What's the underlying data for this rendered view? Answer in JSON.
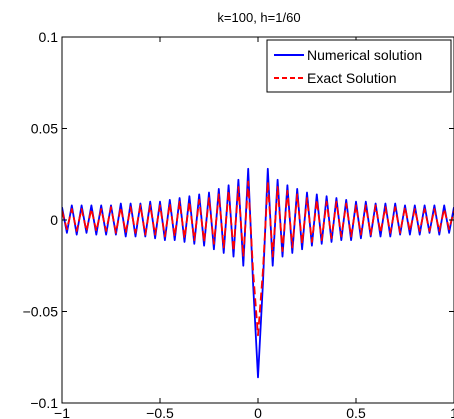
{
  "chart_data": {
    "type": "line",
    "title": "k=100, h=1/60",
    "xlabel": "",
    "ylabel": "",
    "xlim": [
      -1,
      1
    ],
    "ylim": [
      -0.1,
      0.1
    ],
    "xticks": [
      -1,
      -0.5,
      0,
      0.5,
      1
    ],
    "yticks": [
      -0.1,
      -0.05,
      0,
      0.05,
      0.1
    ],
    "xtick_labels": [
      "−1",
      "−0.5",
      "0",
      "0.5",
      "1"
    ],
    "ytick_labels": [
      "−0.1",
      "−0.05",
      "0",
      "0.05",
      "0.1"
    ],
    "grid": false,
    "legend_position": "top-right",
    "series": [
      {
        "name": "Numerical solution",
        "color": "#0000ff",
        "dash": "solid",
        "x": [
          -1,
          -0.975,
          -0.95,
          -0.925,
          -0.9,
          -0.875,
          -0.85,
          -0.825,
          -0.8,
          -0.775,
          -0.75,
          -0.725,
          -0.7,
          -0.675,
          -0.65,
          -0.625,
          -0.6,
          -0.575,
          -0.55,
          -0.525,
          -0.5,
          -0.475,
          -0.45,
          -0.425,
          -0.4,
          -0.375,
          -0.35,
          -0.325,
          -0.3,
          -0.275,
          -0.25,
          -0.225,
          -0.2,
          -0.175,
          -0.15,
          -0.125,
          -0.1,
          -0.075,
          -0.05,
          -0.025,
          0,
          0.025,
          0.05,
          0.075,
          0.1,
          0.125,
          0.15,
          0.175,
          0.2,
          0.225,
          0.25,
          0.275,
          0.3,
          0.325,
          0.35,
          0.375,
          0.4,
          0.425,
          0.45,
          0.475,
          0.5,
          0.525,
          0.55,
          0.575,
          0.6,
          0.625,
          0.65,
          0.675,
          0.7,
          0.725,
          0.75,
          0.775,
          0.8,
          0.825,
          0.85,
          0.875,
          0.9,
          0.925,
          0.95,
          0.975,
          1
        ],
        "y": [
          0.007,
          -0.007,
          0.008,
          -0.008,
          0.008,
          -0.007,
          0.008,
          -0.008,
          0.008,
          -0.008,
          0.008,
          -0.008,
          0.009,
          -0.009,
          0.009,
          -0.009,
          0.009,
          -0.009,
          0.01,
          -0.01,
          0.01,
          -0.011,
          0.011,
          -0.011,
          0.012,
          -0.012,
          0.013,
          -0.013,
          0.014,
          -0.014,
          0.015,
          -0.016,
          0.017,
          -0.018,
          0.019,
          -0.02,
          0.022,
          -0.025,
          0.028,
          -0.035,
          -0.086,
          -0.035,
          0.028,
          -0.025,
          0.022,
          -0.02,
          0.019,
          -0.018,
          0.017,
          -0.016,
          0.015,
          -0.014,
          0.014,
          -0.013,
          0.013,
          -0.012,
          0.012,
          -0.011,
          0.011,
          -0.011,
          0.01,
          -0.01,
          0.01,
          -0.009,
          0.009,
          -0.009,
          0.009,
          -0.009,
          0.009,
          -0.008,
          0.008,
          -0.008,
          0.008,
          -0.008,
          0.008,
          -0.007,
          0.008,
          -0.008,
          0.008,
          -0.007,
          0.007
        ]
      },
      {
        "name": "Exact Solution",
        "color": "#ff0000",
        "dash": "dashed",
        "x": [
          -1,
          -0.975,
          -0.95,
          -0.925,
          -0.9,
          -0.875,
          -0.85,
          -0.825,
          -0.8,
          -0.775,
          -0.75,
          -0.725,
          -0.7,
          -0.675,
          -0.65,
          -0.625,
          -0.6,
          -0.575,
          -0.55,
          -0.525,
          -0.5,
          -0.475,
          -0.45,
          -0.425,
          -0.4,
          -0.375,
          -0.35,
          -0.325,
          -0.3,
          -0.275,
          -0.25,
          -0.225,
          -0.2,
          -0.175,
          -0.15,
          -0.125,
          -0.1,
          -0.075,
          -0.05,
          -0.025,
          0,
          0.025,
          0.05,
          0.075,
          0.1,
          0.125,
          0.15,
          0.175,
          0.2,
          0.225,
          0.25,
          0.275,
          0.3,
          0.325,
          0.35,
          0.375,
          0.4,
          0.425,
          0.45,
          0.475,
          0.5,
          0.525,
          0.55,
          0.575,
          0.6,
          0.625,
          0.65,
          0.675,
          0.7,
          0.725,
          0.75,
          0.775,
          0.8,
          0.825,
          0.85,
          0.875,
          0.9,
          0.925,
          0.95,
          0.975,
          1
        ],
        "y": [
          0.005,
          -0.005,
          0.006,
          -0.006,
          0.006,
          -0.006,
          0.006,
          -0.006,
          0.006,
          -0.006,
          0.007,
          -0.007,
          0.007,
          -0.007,
          0.007,
          -0.007,
          0.008,
          -0.008,
          0.008,
          -0.008,
          0.008,
          -0.009,
          0.009,
          -0.009,
          0.01,
          -0.01,
          0.01,
          -0.011,
          0.011,
          -0.012,
          0.012,
          -0.013,
          0.014,
          -0.015,
          0.016,
          -0.017,
          0.018,
          -0.02,
          0.021,
          -0.028,
          -0.063,
          -0.028,
          0.021,
          -0.02,
          0.018,
          -0.017,
          0.016,
          -0.015,
          0.014,
          -0.013,
          0.012,
          -0.012,
          0.011,
          -0.011,
          0.01,
          -0.01,
          0.01,
          -0.009,
          0.009,
          -0.009,
          0.008,
          -0.008,
          0.008,
          -0.008,
          0.008,
          -0.007,
          0.007,
          -0.007,
          0.007,
          -0.007,
          0.007,
          -0.006,
          0.006,
          -0.006,
          0.006,
          -0.006,
          0.006,
          -0.006,
          0.006,
          -0.005,
          0.005
        ]
      }
    ]
  }
}
